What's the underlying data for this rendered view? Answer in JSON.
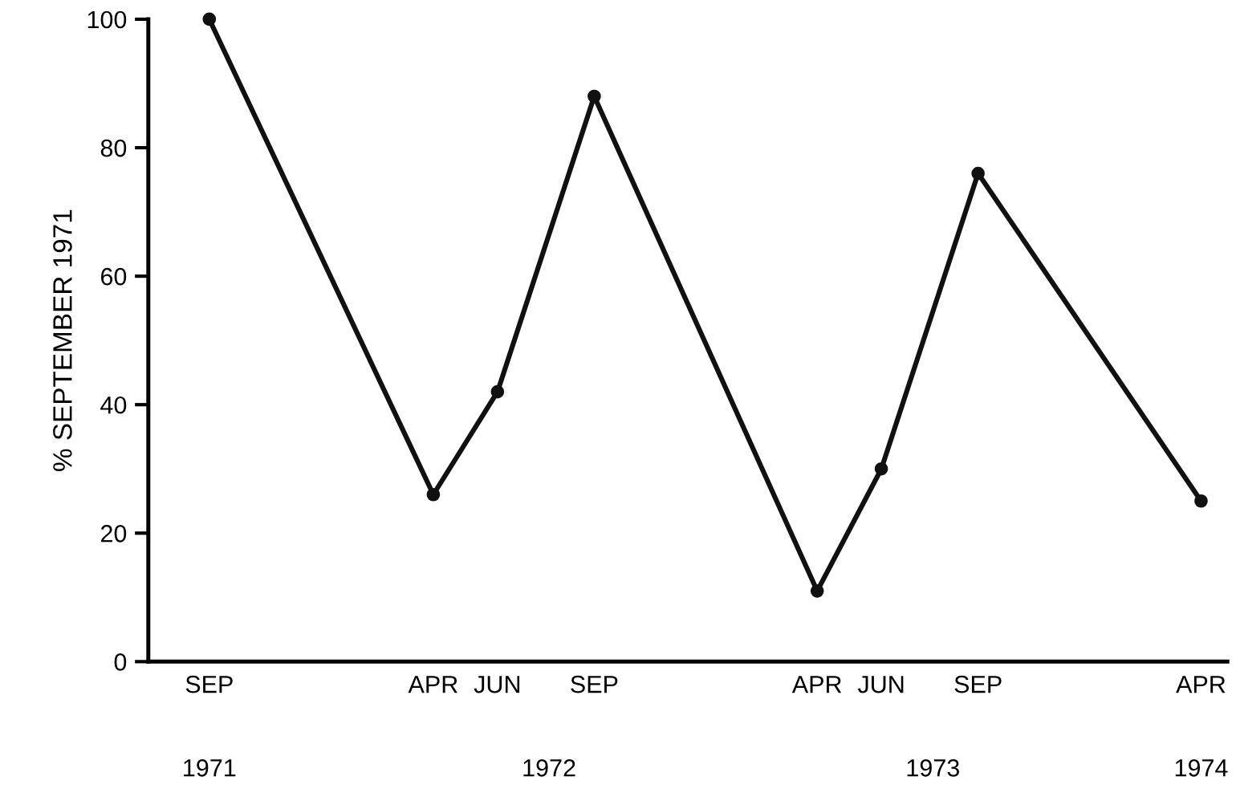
{
  "chart_data": {
    "type": "line",
    "ylabel": "% SEPTEMBER 1971",
    "x": [
      "1971-09",
      "1972-04",
      "1972-06",
      "1972-09",
      "1973-04",
      "1973-06",
      "1973-09",
      "1974-04"
    ],
    "series": [
      {
        "color": "#111111",
        "values": [
          100,
          26,
          42,
          88,
          11,
          30,
          76,
          25
        ]
      }
    ],
    "xlim": [
      "1971-07-05",
      "1974-04-26"
    ],
    "xticks": [
      {
        "value": "1971-09",
        "label": "SEP"
      },
      {
        "value": "1972-04",
        "label": "APR"
      },
      {
        "value": "1972-06",
        "label": "JUN"
      },
      {
        "value": "1972-09",
        "label": "SEP"
      },
      {
        "value": "1973-04",
        "label": "APR"
      },
      {
        "value": "1973-06",
        "label": "JUN"
      },
      {
        "value": "1973-09",
        "label": "SEP"
      },
      {
        "value": "1974-04",
        "label": "APR"
      }
    ],
    "x2lim": [
      "1971-07-05",
      "1974-04-26"
    ],
    "x2ticks": [
      {
        "value": "1971-09",
        "label": "1971"
      },
      {
        "value": "1972-07-20",
        "label": "1972"
      },
      {
        "value": "1973-07-20",
        "label": "1973"
      },
      {
        "value": "1974-04",
        "label": "1974"
      }
    ],
    "ylim": [
      0,
      100
    ],
    "yticks": [
      0,
      20,
      40,
      60,
      80,
      100
    ],
    "marker": "circle",
    "line_style": "solid",
    "grid": false,
    "legend": false
  }
}
